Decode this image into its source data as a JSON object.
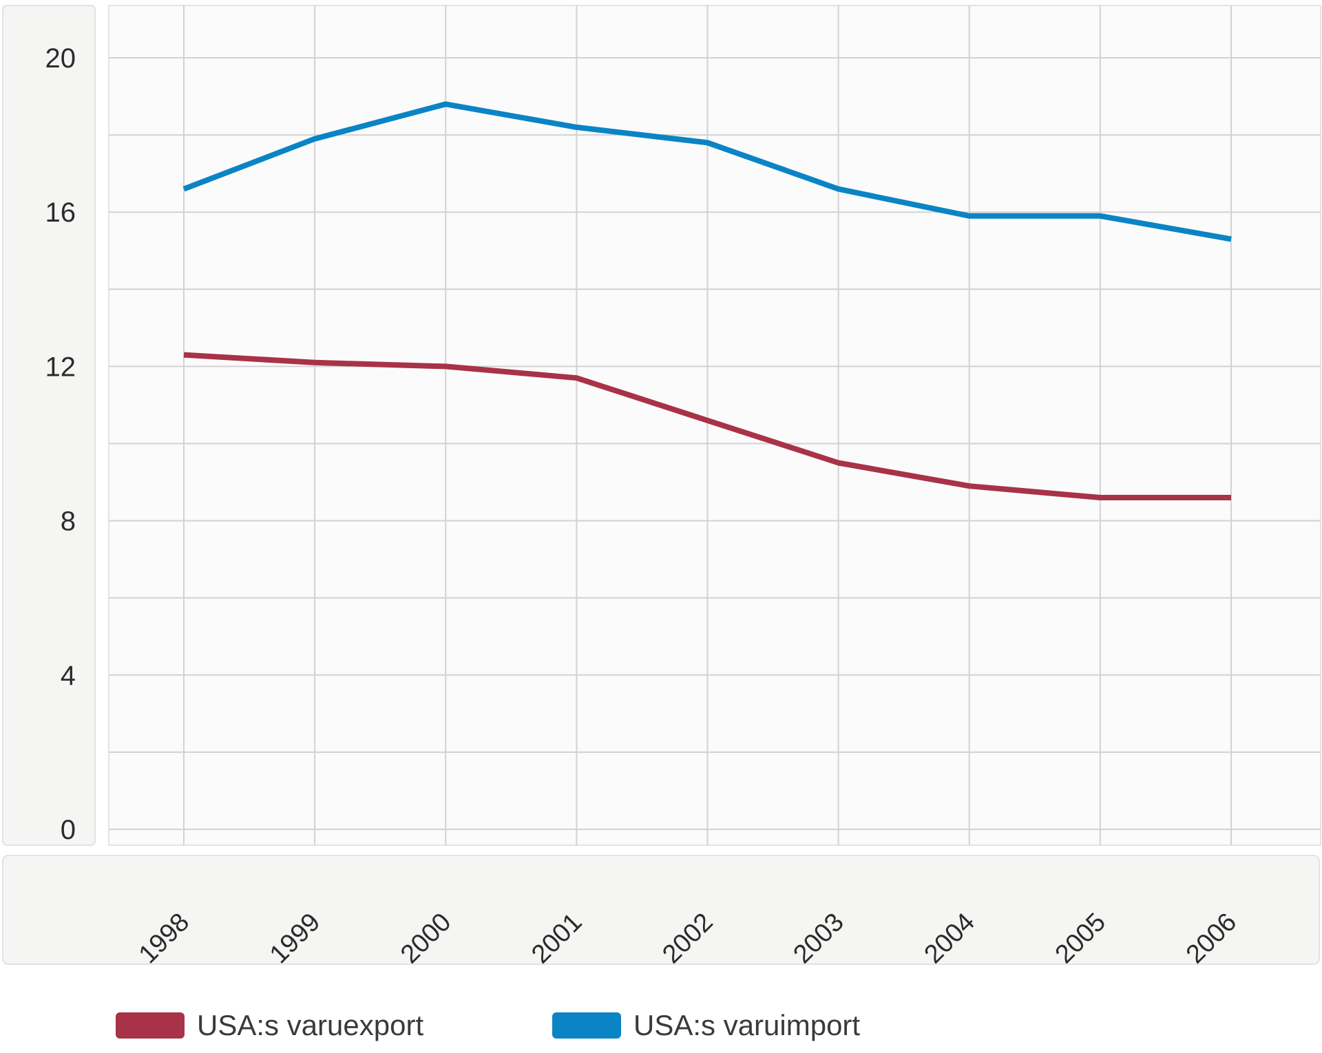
{
  "chart_data": {
    "type": "line",
    "title": "",
    "xlabel": "",
    "ylabel": "",
    "categories": [
      "1998",
      "1999",
      "2000",
      "2001",
      "2002",
      "2003",
      "2004",
      "2005",
      "2006"
    ],
    "ylim": [
      0,
      20
    ],
    "yticks": [
      "0",
      "4",
      "8",
      "12",
      "16",
      "20"
    ],
    "grid": true,
    "legend_position": "bottom",
    "series": [
      {
        "name": "USA:s varuexport",
        "color": "#a83248",
        "values": [
          12.3,
          12.1,
          12.0,
          11.7,
          10.6,
          9.5,
          8.9,
          8.6,
          8.6
        ]
      },
      {
        "name": "USA:s varuimport",
        "color": "#0a84c4",
        "values": [
          16.6,
          17.9,
          18.8,
          18.2,
          17.8,
          16.6,
          15.9,
          15.9,
          15.3
        ]
      }
    ]
  }
}
